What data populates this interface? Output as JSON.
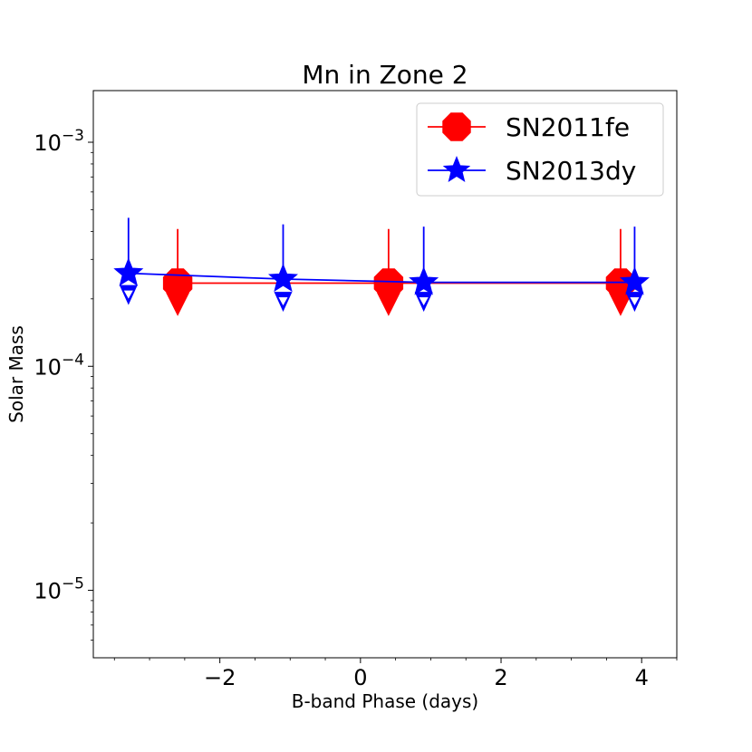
{
  "chart_data": {
    "type": "scatter",
    "title": "Mn in Zone 2",
    "xlabel": "B-band Phase (days)",
    "ylabel": "Solar Mass",
    "xlim": [
      -3.8,
      4.5
    ],
    "ylim": [
      5e-06,
      0.0017
    ],
    "yscale": "log",
    "x_ticks": [
      -2,
      0,
      2,
      4
    ],
    "x_tick_labels": [
      "−2",
      "0",
      "2",
      "4"
    ],
    "y_ticks": [
      1e-05,
      0.0001,
      0.001
    ],
    "y_tick_labels": [
      {
        "base": "10",
        "exp": "−5"
      },
      {
        "base": "10",
        "exp": "−4"
      },
      {
        "base": "10",
        "exp": "−3"
      }
    ],
    "legend_position": "upper right",
    "series": [
      {
        "name": "SN2011fe",
        "color": "#ff0000",
        "marker": "octagon",
        "x": [
          -2.6,
          0.4,
          3.7
        ],
        "y": [
          0.000235,
          0.000235,
          0.000235
        ],
        "err_upper": [
          0.00041,
          0.00041,
          0.00041
        ],
        "lower_limit_marker_y": [
          0.0002,
          0.0002,
          0.0002
        ]
      },
      {
        "name": "SN2013dy",
        "color": "#0000ff",
        "marker": "star",
        "x": [
          -3.3,
          -1.1,
          0.9,
          3.9
        ],
        "y": [
          0.00026,
          0.000245,
          0.000237,
          0.000237
        ],
        "err_upper": [
          0.00046,
          0.00043,
          0.00042,
          0.00042
        ],
        "lower_limit_marker_y": [
          0.00022,
          0.000205,
          0.000205,
          0.000205
        ]
      }
    ]
  }
}
